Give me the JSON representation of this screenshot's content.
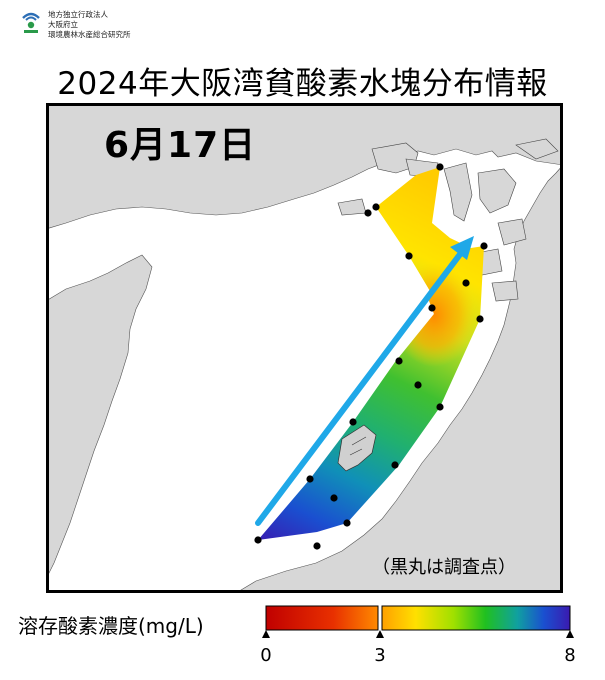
{
  "org": {
    "line1": "地方独立行政法人",
    "line2": "大阪府立",
    "line3": "環境農林水産総合研究所"
  },
  "title": "2024年大阪湾貧酸素水塊分布情報",
  "date_label": "6月17日",
  "note": "（黒丸は調査点）",
  "legend": {
    "label": "溶存酸素濃度(mg/L)",
    "ticks": [
      "0",
      "3",
      "8"
    ],
    "tick_values": [
      0,
      3,
      8
    ],
    "range": [
      0,
      8
    ],
    "colors": [
      "#c80000",
      "#ff6a00",
      "#ffd000",
      "#b8e000",
      "#20c020",
      "#10a0a0",
      "#1040d0",
      "#3a1ab0"
    ],
    "threshold_color": "#ffffff"
  },
  "map": {
    "land_color": "#d7d7d7",
    "sea_color": "#ffffff",
    "arrow_color": "#1fa8e8",
    "station_color": "#000000",
    "station_count": 18
  }
}
